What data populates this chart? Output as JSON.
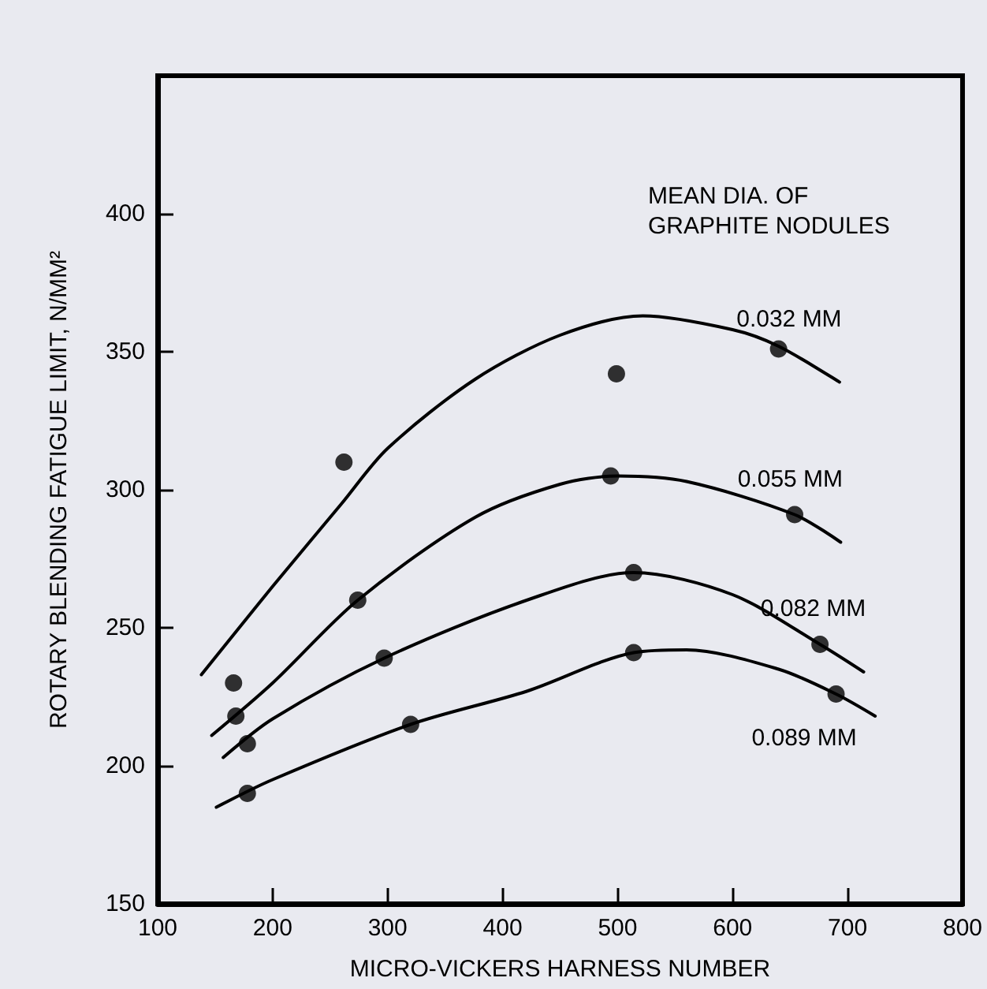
{
  "chart_data": {
    "type": "scatter",
    "xlabel": "MICRO-VICKERS HARNESS NUMBER",
    "ylabel": "ROTARY BLENDING FATIGUE LIMIT, N/MM²",
    "annotations": [
      "MEAN DIA. OF GRAPHITE NODULES"
    ],
    "xlim": [
      100,
      800
    ],
    "xticks": [
      100,
      200,
      300,
      400,
      500,
      600,
      700,
      800
    ],
    "ylim": [
      150,
      450
    ],
    "yticks": [
      150,
      200,
      250,
      300,
      350,
      400
    ],
    "grid": false,
    "legend": false,
    "marker": "circle",
    "series": [
      {
        "color": "#000000",
        "x": [
          166,
          262,
          499,
          640
        ],
        "values": [
          230,
          310,
          342,
          351
        ]
      },
      {
        "color": "#000000",
        "x": [
          168,
          274,
          494,
          654
        ],
        "values": [
          218,
          260,
          305,
          291
        ]
      },
      {
        "color": "#000000",
        "x": [
          178,
          297,
          514,
          676
        ],
        "values": [
          208,
          239,
          270,
          244
        ]
      },
      {
        "color": "#000000",
        "x": [
          178,
          320,
          514,
          690
        ],
        "values": [
          190,
          215,
          241,
          226
        ]
      },
      {
        "type": "line",
        "name": "0.032 MM",
        "color": "#000000",
        "marker": "none",
        "line_style": "solid",
        "x": [
          138,
          200,
          260,
          300,
          376,
          450,
          522,
          600,
          640,
          693
        ],
        "values": [
          233,
          265,
          295,
          315,
          340,
          356,
          363,
          358,
          352,
          339
        ]
      },
      {
        "type": "line",
        "name": "0.055 MM",
        "color": "#000000",
        "marker": "none",
        "line_style": "solid",
        "x": [
          147,
          200,
          274,
          376,
          450,
          500,
          560,
          654,
          694
        ],
        "values": [
          211,
          230,
          260,
          290,
          302,
          305,
          303,
          291,
          281
        ]
      },
      {
        "type": "line",
        "name": "0.082 MM",
        "color": "#000000",
        "marker": "none",
        "line_style": "solid",
        "x": [
          157,
          200,
          297,
          421,
          514,
          600,
          676,
          714
        ],
        "values": [
          203,
          217,
          239,
          260,
          270,
          262,
          244,
          234
        ]
      },
      {
        "type": "line",
        "name": "0.089 MM",
        "color": "#000000",
        "marker": "none",
        "line_style": "solid",
        "x": [
          151,
          200,
          320,
          421,
          514,
          560,
          640,
          690,
          724
        ],
        "values": [
          185,
          195,
          215,
          227,
          241,
          242,
          235,
          226,
          218
        ]
      }
    ]
  }
}
